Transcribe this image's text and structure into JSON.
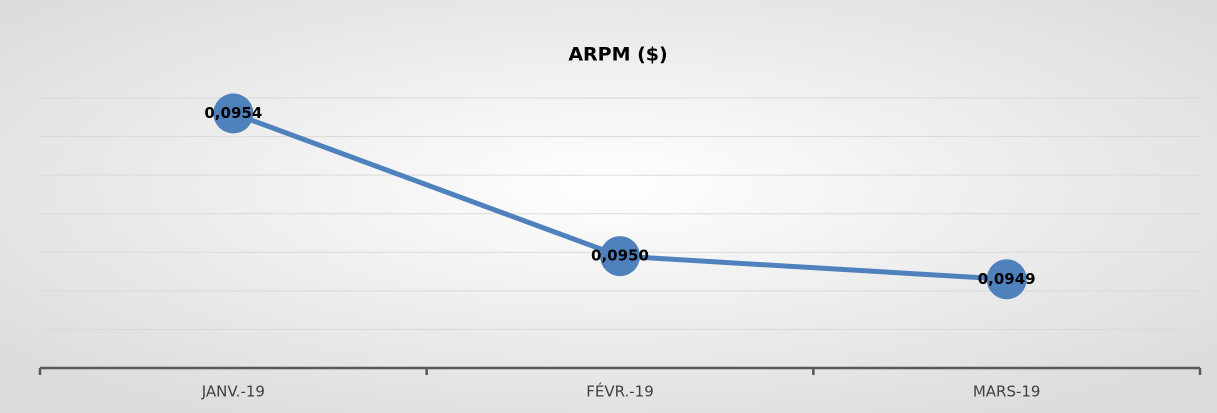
{
  "chart_data": {
    "type": "line",
    "title": "ARPM ($)",
    "categories": [
      "JANV.-19",
      "FÉVR.-19",
      "MARS-19"
    ],
    "series": [
      {
        "name": "ARPM ($)",
        "color": "#4f81bd",
        "values": [
          0.09536,
          0.09499,
          0.09493
        ],
        "value_labels": [
          "0,0954",
          "0,0950",
          "0,0949"
        ]
      }
    ],
    "ylim": [
      0.0947,
      0.0954
    ],
    "yticks": [
      0.0947,
      0.0948,
      0.0949,
      0.095,
      0.0951,
      0.0952,
      0.0953,
      0.0954
    ],
    "grid": true
  }
}
